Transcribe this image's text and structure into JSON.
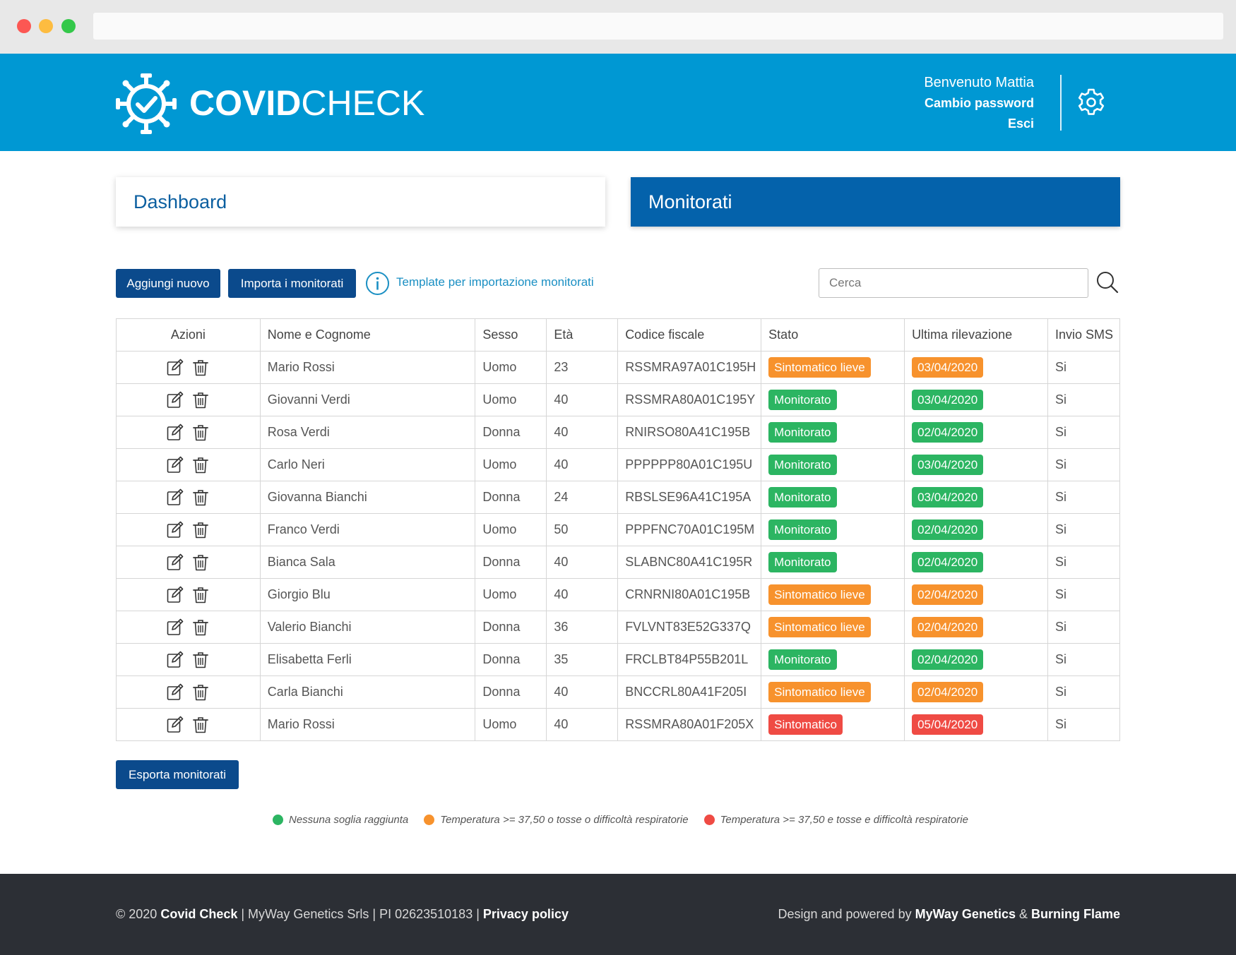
{
  "header": {
    "logo_bold": "COVID",
    "logo_light": "CHECK",
    "welcome": "Benvenuto Mattia",
    "change_password": "Cambio password",
    "logout": "Esci"
  },
  "cards": {
    "dashboard": "Dashboard",
    "monitorati": "Monitorati"
  },
  "toolbar": {
    "add_label": "Aggiungi nuovo",
    "import_label": "Importa i monitorati",
    "template_link": "Template per importazione monitorati",
    "search_placeholder": "Cerca"
  },
  "table": {
    "headers": [
      "Azioni",
      "Nome e Cognome",
      "Sesso",
      "Età",
      "Codice fiscale",
      "Stato",
      "Ultima rilevazione",
      "Invio SMS"
    ],
    "rows": [
      {
        "name": "Mario Rossi",
        "sex": "Uomo",
        "age": "23",
        "cf": "RSSMRA97A01C195H",
        "status": "Sintomatico lieve",
        "color": "orange",
        "date": "03/04/2020",
        "sms": "Si"
      },
      {
        "name": "Giovanni Verdi",
        "sex": "Uomo",
        "age": "40",
        "cf": "RSSMRA80A01C195Y",
        "status": "Monitorato",
        "color": "green",
        "date": "03/04/2020",
        "sms": "Si"
      },
      {
        "name": "Rosa Verdi",
        "sex": "Donna",
        "age": "40",
        "cf": "RNIRSO80A41C195B",
        "status": "Monitorato",
        "color": "green",
        "date": "02/04/2020",
        "sms": "Si"
      },
      {
        "name": "Carlo Neri",
        "sex": "Uomo",
        "age": "40",
        "cf": "PPPPPP80A01C195U",
        "status": "Monitorato",
        "color": "green",
        "date": "03/04/2020",
        "sms": "Si"
      },
      {
        "name": "Giovanna Bianchi",
        "sex": "Donna",
        "age": "24",
        "cf": "RBSLSE96A41C195A",
        "status": "Monitorato",
        "color": "green",
        "date": "03/04/2020",
        "sms": "Si"
      },
      {
        "name": "Franco Verdi",
        "sex": "Uomo",
        "age": "50",
        "cf": "PPPFNC70A01C195M",
        "status": "Monitorato",
        "color": "green",
        "date": "02/04/2020",
        "sms": "Si"
      },
      {
        "name": "Bianca Sala",
        "sex": "Donna",
        "age": "40",
        "cf": "SLABNC80A41C195R",
        "status": "Monitorato",
        "color": "green",
        "date": "02/04/2020",
        "sms": "Si"
      },
      {
        "name": "Giorgio Blu",
        "sex": "Uomo",
        "age": "40",
        "cf": "CRNRNI80A01C195B",
        "status": "Sintomatico lieve",
        "color": "orange",
        "date": "02/04/2020",
        "sms": "Si"
      },
      {
        "name": "Valerio Bianchi",
        "sex": "Donna",
        "age": "36",
        "cf": "FVLVNT83E52G337Q",
        "status": "Sintomatico lieve",
        "color": "orange",
        "date": "02/04/2020",
        "sms": "Si"
      },
      {
        "name": "Elisabetta Ferli",
        "sex": "Donna",
        "age": "35",
        "cf": "FRCLBT84P55B201L",
        "status": "Monitorato",
        "color": "green",
        "date": "02/04/2020",
        "sms": "Si"
      },
      {
        "name": "Carla Bianchi",
        "sex": "Donna",
        "age": "40",
        "cf": "BNCCRL80A41F205I",
        "status": "Sintomatico lieve",
        "color": "orange",
        "date": "02/04/2020",
        "sms": "Si"
      },
      {
        "name": "Mario Rossi",
        "sex": "Uomo",
        "age": "40",
        "cf": "RSSMRA80A01F205X",
        "status": "Sintomatico",
        "color": "red",
        "date": "05/04/2020",
        "sms": "Si"
      }
    ]
  },
  "export_label": "Esporta monitorati",
  "legend": [
    {
      "label": "Nessuna soglia raggiunta",
      "color": "#2cb562"
    },
    {
      "label": "Temperatura >= 37,50 o tosse o difficoltà respiratorie",
      "color": "#f7922d"
    },
    {
      "label": "Temperatura >= 37,50 e tosse e difficoltà respiratorie",
      "color": "#ef4b44"
    }
  ],
  "footer": {
    "copyright": "© 2020",
    "brand": "Covid Check",
    "company": " | MyWay Genetics Srls | PI 02623510183 | ",
    "privacy": "Privacy policy",
    "credits_prefix": "Design and powered by ",
    "credit_1": "MyWay Genetics",
    "credit_sep": " & ",
    "credit_2": "Burning Flame"
  },
  "colors": {
    "header": "#0098d3",
    "primary_button": "#0b4a8c",
    "active_card": "#0462ab",
    "status_green": "#2cb562",
    "status_orange": "#f7922d",
    "status_red": "#ef4b44",
    "footer": "#2c2f35"
  },
  "icons": [
    "virus-check-logo-icon",
    "gear-icon",
    "info-icon",
    "search-icon",
    "edit-icon",
    "trash-icon"
  ]
}
